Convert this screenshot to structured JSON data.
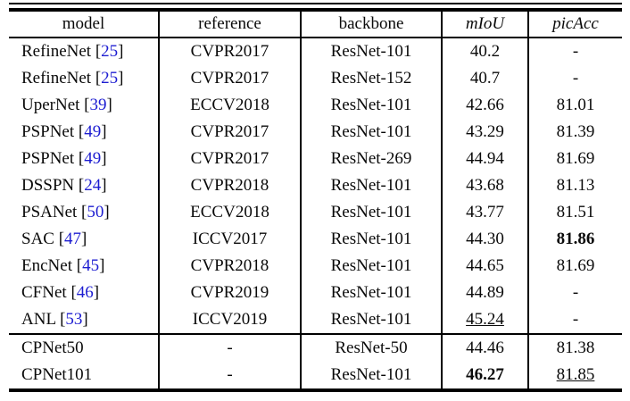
{
  "table": {
    "columns": [
      {
        "key": "model",
        "label": "model",
        "italic": false
      },
      {
        "key": "reference",
        "label": "reference",
        "italic": false
      },
      {
        "key": "backbone",
        "label": "backbone",
        "italic": false
      },
      {
        "key": "miou",
        "label": "mIoU",
        "italic": true
      },
      {
        "key": "picacc",
        "label": "picAcc",
        "italic": true
      }
    ],
    "rows": [
      {
        "model": "RefineNet",
        "cite": "25",
        "reference": "CVPR2017",
        "backbone": "ResNet-101",
        "miou": {
          "text": "40.2",
          "bold": false,
          "underline": false
        },
        "picacc": {
          "text": "-",
          "bold": false,
          "underline": false
        },
        "group_start": false
      },
      {
        "model": "RefineNet",
        "cite": "25",
        "reference": "CVPR2017",
        "backbone": "ResNet-152",
        "miou": {
          "text": "40.7",
          "bold": false,
          "underline": false
        },
        "picacc": {
          "text": "-",
          "bold": false,
          "underline": false
        },
        "group_start": false
      },
      {
        "model": "UperNet",
        "cite": "39",
        "reference": "ECCV2018",
        "backbone": "ResNet-101",
        "miou": {
          "text": "42.66",
          "bold": false,
          "underline": false
        },
        "picacc": {
          "text": "81.01",
          "bold": false,
          "underline": false
        },
        "group_start": false
      },
      {
        "model": "PSPNet",
        "cite": "49",
        "reference": "CVPR2017",
        "backbone": "ResNet-101",
        "miou": {
          "text": "43.29",
          "bold": false,
          "underline": false
        },
        "picacc": {
          "text": "81.39",
          "bold": false,
          "underline": false
        },
        "group_start": false
      },
      {
        "model": "PSPNet",
        "cite": "49",
        "reference": "CVPR2017",
        "backbone": "ResNet-269",
        "miou": {
          "text": "44.94",
          "bold": false,
          "underline": false
        },
        "picacc": {
          "text": "81.69",
          "bold": false,
          "underline": false
        },
        "group_start": false
      },
      {
        "model": "DSSPN",
        "cite": "24",
        "reference": "CVPR2018",
        "backbone": "ResNet-101",
        "miou": {
          "text": "43.68",
          "bold": false,
          "underline": false
        },
        "picacc": {
          "text": "81.13",
          "bold": false,
          "underline": false
        },
        "group_start": false
      },
      {
        "model": "PSANet",
        "cite": "50",
        "reference": "ECCV2018",
        "backbone": "ResNet-101",
        "miou": {
          "text": "43.77",
          "bold": false,
          "underline": false
        },
        "picacc": {
          "text": "81.51",
          "bold": false,
          "underline": false
        },
        "group_start": false
      },
      {
        "model": "SAC",
        "cite": "47",
        "reference": "ICCV2017",
        "backbone": "ResNet-101",
        "miou": {
          "text": "44.30",
          "bold": false,
          "underline": false
        },
        "picacc": {
          "text": "81.86",
          "bold": true,
          "underline": false
        },
        "group_start": false
      },
      {
        "model": "EncNet",
        "cite": "45",
        "reference": "CVPR2018",
        "backbone": "ResNet-101",
        "miou": {
          "text": "44.65",
          "bold": false,
          "underline": false
        },
        "picacc": {
          "text": "81.69",
          "bold": false,
          "underline": false
        },
        "group_start": false
      },
      {
        "model": "CFNet",
        "cite": "46",
        "reference": "CVPR2019",
        "backbone": "ResNet-101",
        "miou": {
          "text": "44.89",
          "bold": false,
          "underline": false
        },
        "picacc": {
          "text": "-",
          "bold": false,
          "underline": false
        },
        "group_start": false
      },
      {
        "model": "ANL",
        "cite": "53",
        "reference": "ICCV2019",
        "backbone": "ResNet-101",
        "miou": {
          "text": "45.24",
          "bold": false,
          "underline": true
        },
        "picacc": {
          "text": "-",
          "bold": false,
          "underline": false
        },
        "group_start": false
      },
      {
        "model": "CPNet50",
        "cite": null,
        "reference": "-",
        "backbone": "ResNet-50",
        "miou": {
          "text": "44.46",
          "bold": false,
          "underline": false
        },
        "picacc": {
          "text": "81.38",
          "bold": false,
          "underline": false
        },
        "group_start": true
      },
      {
        "model": "CPNet101",
        "cite": null,
        "reference": "-",
        "backbone": "ResNet-101",
        "miou": {
          "text": "46.27",
          "bold": true,
          "underline": false
        },
        "picacc": {
          "text": "81.85",
          "bold": false,
          "underline": true
        },
        "group_start": false
      }
    ],
    "colors": {
      "citation_blue": "#1d1dd1",
      "text": "#0a0a0a",
      "rule": "#000000"
    }
  }
}
